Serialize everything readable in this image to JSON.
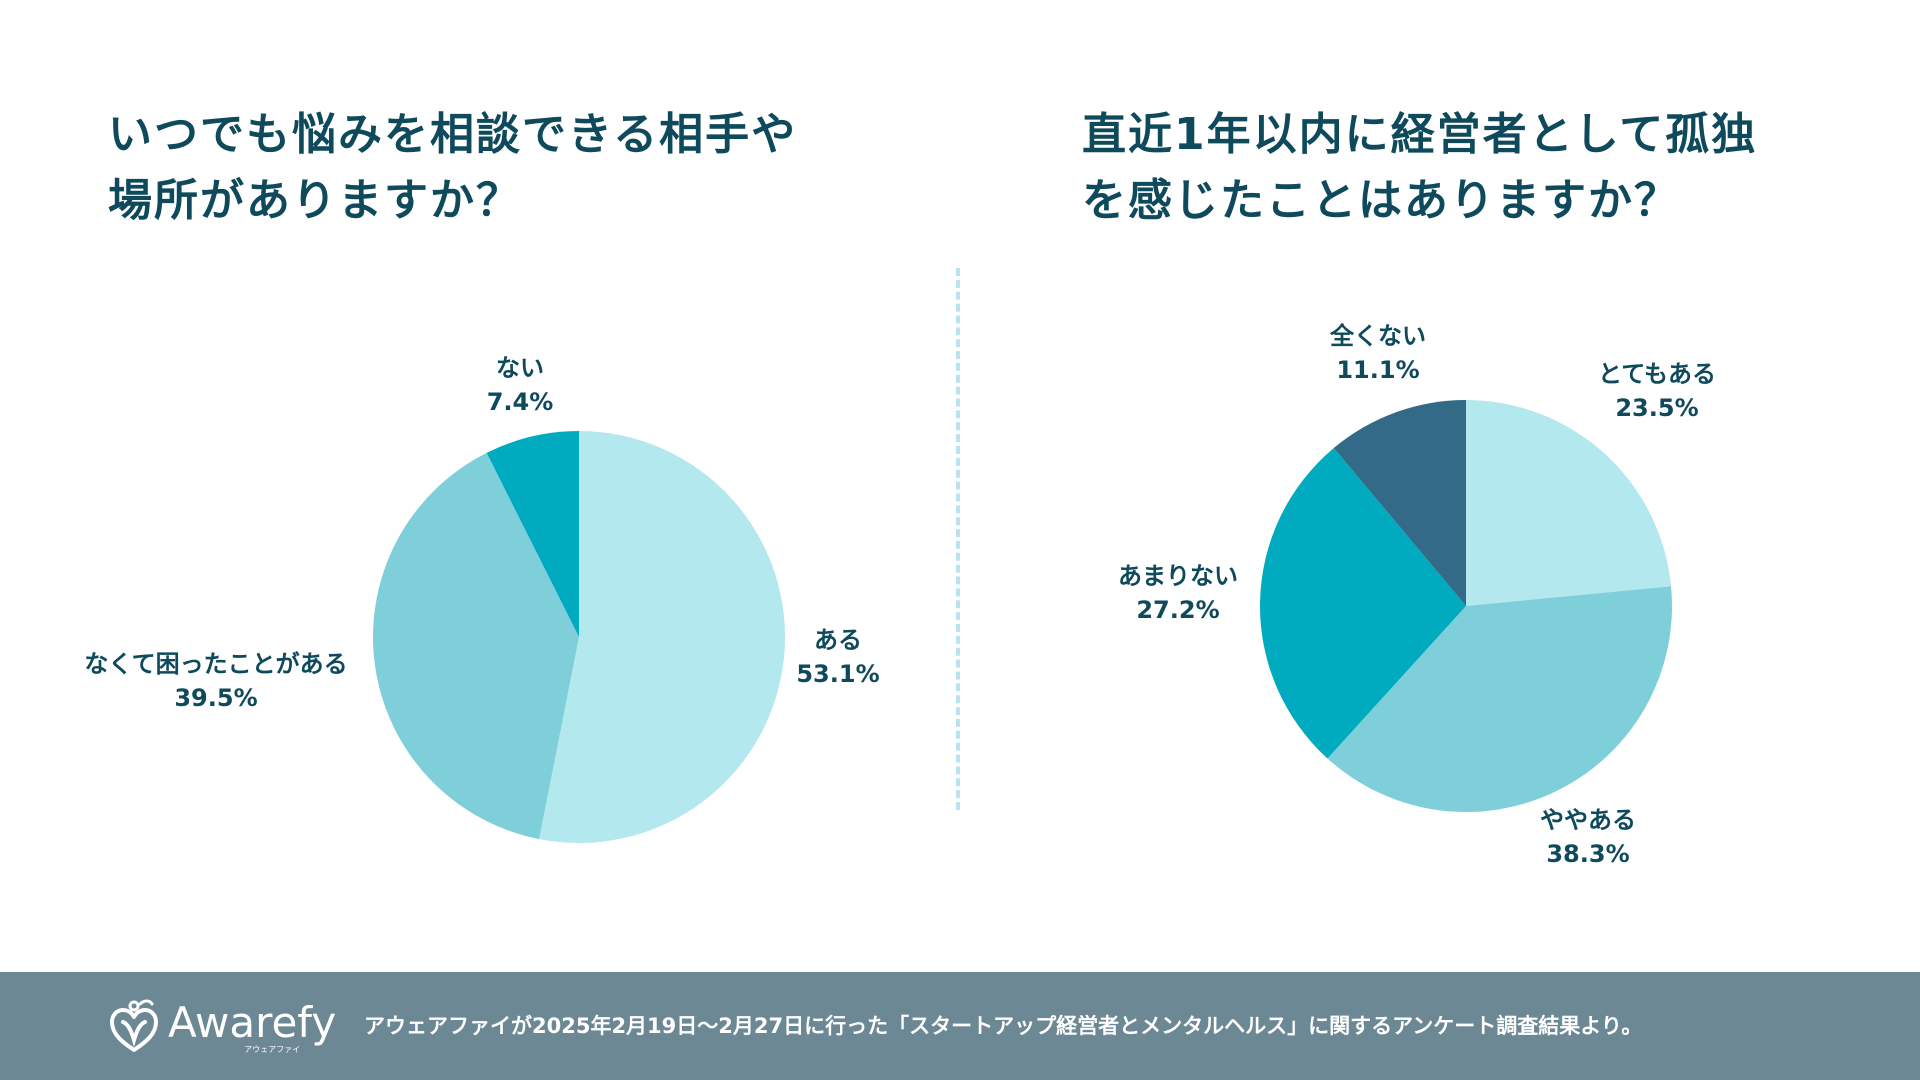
{
  "colors": {
    "title": "#0e4a5c",
    "divider": "#b9e3ef",
    "footer_bg": "#6b8894",
    "slice_light": "#b4e8ef",
    "slice_mid": "#7ecfd9",
    "slice_teal": "#00aabf",
    "slice_dark": "#336a87"
  },
  "chart_data": [
    {
      "type": "pie",
      "title": "いつでも悩みを相談できる相手や\n場所がありますか？",
      "start_angle_deg": 0,
      "direction": "clockwise",
      "slices": [
        {
          "label": "ある",
          "value": 53.1,
          "value_label": "53.1%",
          "color": "#b4e8ef"
        },
        {
          "label": "なくて困ったことがある",
          "value": 39.5,
          "value_label": "39.5%",
          "color": "#7ecfd9"
        },
        {
          "label": "ない",
          "value": 7.4,
          "value_label": "7.4%",
          "color": "#00aabf"
        }
      ]
    },
    {
      "type": "pie",
      "title": "直近1年以内に経営者として孤独\nを感じたことはありますか？",
      "start_angle_deg": 0,
      "direction": "clockwise",
      "slices": [
        {
          "label": "とてもある",
          "value": 23.5,
          "value_label": "23.5%",
          "color": "#b4e8ef"
        },
        {
          "label": "ややある",
          "value": 38.3,
          "value_label": "38.3%",
          "color": "#7ecfd9"
        },
        {
          "label": "あまりない",
          "value": 27.2,
          "value_label": "27.2%",
          "color": "#00aabf"
        },
        {
          "label": "全くない",
          "value": 11.1,
          "value_label": "11.1%",
          "color": "#336a87"
        }
      ]
    }
  ],
  "footer": {
    "logo_name": "Awarefy",
    "logo_sub": "アウェアファイ",
    "note": "アウェアファイが2025年2月19日〜2月27日に行った「スタートアップ経営者とメンタルヘルス」に関するアンケート調査結果より。"
  }
}
